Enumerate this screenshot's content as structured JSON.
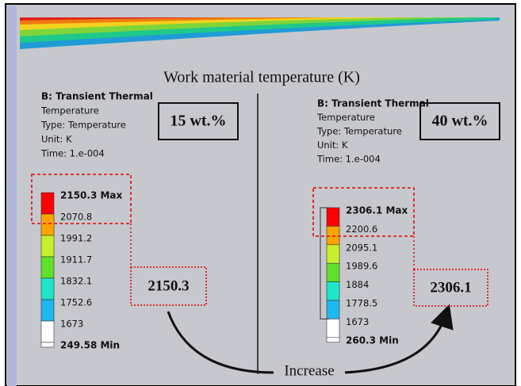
{
  "title": "Work material temperature (K)",
  "increase_label": "Increase",
  "panels": [
    {
      "header": "B: Transient Thermal",
      "lines": [
        "Temperature",
        "Type: Temperature",
        "Unit: K",
        "Time: 1.e-004"
      ],
      "concentration": "15 wt.%",
      "highlight": "2150.3",
      "legend": [
        "2150.3 Max",
        "2070.8",
        "1991.2",
        "1911.7",
        "1832.1",
        "1752.6",
        "1673",
        "249.58 Min"
      ]
    },
    {
      "header": "B: Transient Thermal",
      "lines": [
        "Temperature",
        "Type: Temperature",
        "Unit: K",
        "Time: 1.e-004"
      ],
      "concentration": "40 wt.%",
      "highlight": "2306.1",
      "legend": [
        "2306.1 Max",
        "2200.6",
        "2095.1",
        "1989.6",
        "1884",
        "1778.5",
        "1673",
        "260.3 Min"
      ]
    }
  ]
}
